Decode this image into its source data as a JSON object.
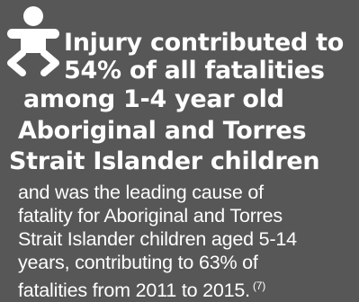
{
  "icon": "child-icon",
  "colors": {
    "background": "#575757",
    "text": "#ffffff"
  },
  "headline": {
    "line1": "Injury contributed to",
    "line2": "54% of all fatalities",
    "line3": "among 1-4 year old",
    "line4": "Aboriginal and Torres",
    "line5": "Strait Islander children"
  },
  "body": {
    "line1": "and was the leading cause of",
    "line2": "fatality for Aboriginal and Torres",
    "line3": "Strait Islander children aged 5-14",
    "line4": "years, contributing to 63% of",
    "line5": "fatalities from 2011 to 2015.",
    "reference": "(7)"
  }
}
